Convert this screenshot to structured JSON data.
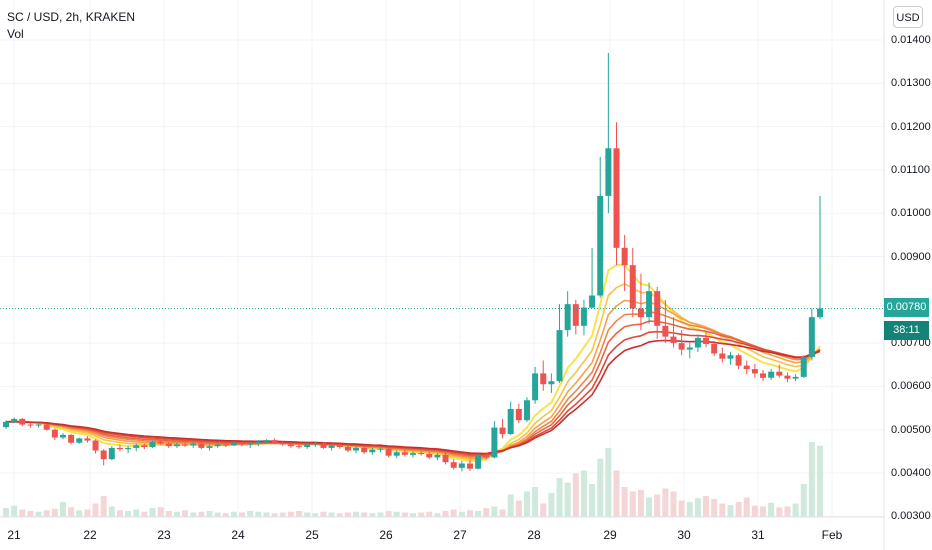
{
  "header": {
    "symbol_title": "SC / USD, 2h, KRAKEN",
    "volume_label": "Vol"
  },
  "currency_button": "USD",
  "last_price": {
    "label": "0.00780",
    "countdown": "38:11",
    "value": 0.0078
  },
  "colors": {
    "up": "#26a69a",
    "down": "#ef5350",
    "vol_up": "#cfe9dc",
    "vol_down": "#f4d6d6",
    "ema_ribbon": [
      "#f9e24a",
      "#f7c24a",
      "#f3a24a",
      "#ef8548",
      "#e86644",
      "#dd4a3d",
      "#c8302e"
    ]
  },
  "chart_data": {
    "type": "candlestick",
    "title": "SC / USD, 2h, KRAKEN",
    "ylim": [
      0.0031,
      0.0142
    ],
    "y_ticks": [
      "0.01400",
      "0.01300",
      "0.01200",
      "0.01100",
      "0.01000",
      "0.00900",
      "0.00700",
      "0.00600",
      "0.00500",
      "0.00400",
      "0.00300"
    ],
    "x_ticks": [
      "21",
      "22",
      "23",
      "24",
      "25",
      "26",
      "27",
      "28",
      "29",
      "30",
      "31",
      "Feb"
    ],
    "last_price": 0.0078,
    "grid": true,
    "candles": [
      [
        0.00506,
        0.00522,
        0.00502,
        0.00518
      ],
      [
        0.00518,
        0.00528,
        0.00515,
        0.00525
      ],
      [
        0.00525,
        0.00527,
        0.00508,
        0.00512
      ],
      [
        0.00512,
        0.00516,
        0.00505,
        0.0051
      ],
      [
        0.0051,
        0.00515,
        0.00505,
        0.00512
      ],
      [
        0.00512,
        0.00514,
        0.00498,
        0.005
      ],
      [
        0.005,
        0.00503,
        0.00476,
        0.00482
      ],
      [
        0.00482,
        0.00492,
        0.00478,
        0.00488
      ],
      [
        0.00488,
        0.0049,
        0.00466,
        0.0047
      ],
      [
        0.0047,
        0.00482,
        0.00468,
        0.0048
      ],
      [
        0.0048,
        0.00485,
        0.0047,
        0.00475
      ],
      [
        0.00475,
        0.00478,
        0.00445,
        0.00452
      ],
      [
        0.00452,
        0.00455,
        0.00418,
        0.00432
      ],
      [
        0.00432,
        0.00462,
        0.0043,
        0.00458
      ],
      [
        0.00458,
        0.00466,
        0.0045,
        0.00455
      ],
      [
        0.00455,
        0.00462,
        0.00446,
        0.00458
      ],
      [
        0.00458,
        0.00468,
        0.0045,
        0.00464
      ],
      [
        0.00464,
        0.00468,
        0.00455,
        0.0046
      ],
      [
        0.0046,
        0.00475,
        0.00458,
        0.00472
      ],
      [
        0.00472,
        0.00476,
        0.00465,
        0.00468
      ],
      [
        0.00468,
        0.00472,
        0.00458,
        0.00462
      ],
      [
        0.00462,
        0.0047,
        0.00458,
        0.00466
      ],
      [
        0.00466,
        0.0047,
        0.0046,
        0.00464
      ],
      [
        0.00464,
        0.00472,
        0.00458,
        0.00468
      ],
      [
        0.00468,
        0.0047,
        0.00455,
        0.00458
      ],
      [
        0.00458,
        0.00466,
        0.00452,
        0.00462
      ],
      [
        0.00462,
        0.0047,
        0.00458,
        0.00466
      ],
      [
        0.00466,
        0.0047,
        0.0046,
        0.00464
      ],
      [
        0.00464,
        0.00475,
        0.00462,
        0.0047
      ],
      [
        0.0047,
        0.00472,
        0.00462,
        0.00466
      ],
      [
        0.00466,
        0.00472,
        0.00458,
        0.00468
      ],
      [
        0.00468,
        0.00476,
        0.00462,
        0.00472
      ],
      [
        0.00472,
        0.00478,
        0.00468,
        0.00476
      ],
      [
        0.00476,
        0.0048,
        0.00466,
        0.0047
      ],
      [
        0.0047,
        0.00474,
        0.00462,
        0.00466
      ],
      [
        0.00466,
        0.0047,
        0.00458,
        0.00462
      ],
      [
        0.00462,
        0.00468,
        0.00456,
        0.0046
      ],
      [
        0.0046,
        0.0047,
        0.00456,
        0.00466
      ],
      [
        0.00466,
        0.00472,
        0.0046,
        0.00468
      ],
      [
        0.00468,
        0.00472,
        0.00456,
        0.00458
      ],
      [
        0.00458,
        0.00466,
        0.00452,
        0.00464
      ],
      [
        0.00464,
        0.00468,
        0.00456,
        0.0046
      ],
      [
        0.0046,
        0.00466,
        0.00448,
        0.00452
      ],
      [
        0.00452,
        0.00462,
        0.00446,
        0.00458
      ],
      [
        0.00458,
        0.00462,
        0.00444,
        0.00448
      ],
      [
        0.00448,
        0.00458,
        0.00442,
        0.00454
      ],
      [
        0.00454,
        0.0046,
        0.00448,
        0.00456
      ],
      [
        0.00456,
        0.00458,
        0.00436,
        0.0044
      ],
      [
        0.0044,
        0.00452,
        0.00434,
        0.00448
      ],
      [
        0.00448,
        0.00454,
        0.00438,
        0.00442
      ],
      [
        0.00442,
        0.0045,
        0.00436,
        0.00446
      ],
      [
        0.00446,
        0.00452,
        0.0044,
        0.00444
      ],
      [
        0.00444,
        0.00448,
        0.00432,
        0.00436
      ],
      [
        0.00436,
        0.00446,
        0.0043,
        0.00442
      ],
      [
        0.00442,
        0.00448,
        0.0042,
        0.00425
      ],
      [
        0.00425,
        0.00432,
        0.00408,
        0.00412
      ],
      [
        0.00412,
        0.00428,
        0.00404,
        0.00422
      ],
      [
        0.00422,
        0.0043,
        0.00405,
        0.0041
      ],
      [
        0.0041,
        0.00445,
        0.00408,
        0.0044
      ],
      [
        0.0044,
        0.00448,
        0.00432,
        0.00436
      ],
      [
        0.00436,
        0.0052,
        0.00434,
        0.00505
      ],
      [
        0.00505,
        0.00525,
        0.0048,
        0.0049
      ],
      [
        0.0049,
        0.00565,
        0.00488,
        0.00548
      ],
      [
        0.00548,
        0.0056,
        0.00515,
        0.00522
      ],
      [
        0.00522,
        0.00575,
        0.00518,
        0.00568
      ],
      [
        0.00568,
        0.00645,
        0.0056,
        0.0063
      ],
      [
        0.0063,
        0.0066,
        0.0059,
        0.00605
      ],
      [
        0.00605,
        0.0063,
        0.00585,
        0.00612
      ],
      [
        0.00612,
        0.0079,
        0.00608,
        0.0073
      ],
      [
        0.0073,
        0.0082,
        0.00715,
        0.0079
      ],
      [
        0.0079,
        0.008,
        0.0072,
        0.0074
      ],
      [
        0.0074,
        0.008,
        0.00718,
        0.00782
      ],
      [
        0.00782,
        0.0092,
        0.0078,
        0.0081
      ],
      [
        0.0081,
        0.0113,
        0.00805,
        0.0104
      ],
      [
        0.0104,
        0.0137,
        0.01,
        0.0115
      ],
      [
        0.0115,
        0.0121,
        0.0088,
        0.0092
      ],
      [
        0.0092,
        0.0095,
        0.0082,
        0.0088
      ],
      [
        0.0088,
        0.0092,
        0.0076,
        0.0078
      ],
      [
        0.0078,
        0.0086,
        0.0073,
        0.0076
      ],
      [
        0.0076,
        0.0084,
        0.00745,
        0.0082
      ],
      [
        0.0082,
        0.0083,
        0.0071,
        0.0074
      ],
      [
        0.0074,
        0.008,
        0.007,
        0.00715
      ],
      [
        0.00715,
        0.0076,
        0.0069,
        0.007
      ],
      [
        0.007,
        0.0073,
        0.00672,
        0.00685
      ],
      [
        0.00685,
        0.007,
        0.00665,
        0.0069
      ],
      [
        0.0069,
        0.0072,
        0.0068,
        0.00712
      ],
      [
        0.00712,
        0.00725,
        0.0069,
        0.00698
      ],
      [
        0.00698,
        0.00705,
        0.0067,
        0.00676
      ],
      [
        0.00676,
        0.0069,
        0.00655,
        0.00664
      ],
      [
        0.00664,
        0.0068,
        0.0065,
        0.00672
      ],
      [
        0.00672,
        0.00676,
        0.0064,
        0.00648
      ],
      [
        0.00648,
        0.0066,
        0.00628,
        0.0064
      ],
      [
        0.0064,
        0.00652,
        0.0062,
        0.0063
      ],
      [
        0.0063,
        0.00638,
        0.00612,
        0.0062
      ],
      [
        0.0062,
        0.0064,
        0.00615,
        0.00634
      ],
      [
        0.00634,
        0.0065,
        0.0062,
        0.00625
      ],
      [
        0.00625,
        0.00632,
        0.0061,
        0.00618
      ],
      [
        0.00618,
        0.00628,
        0.00612,
        0.00622
      ],
      [
        0.00622,
        0.00672,
        0.0062,
        0.00668
      ],
      [
        0.00668,
        0.0078,
        0.0066,
        0.0076
      ],
      [
        0.0076,
        0.0104,
        0.00755,
        0.0078
      ]
    ],
    "volumes": [
      0.12,
      0.15,
      0.1,
      0.08,
      0.07,
      0.09,
      0.11,
      0.2,
      0.13,
      0.09,
      0.1,
      0.18,
      0.28,
      0.14,
      0.09,
      0.08,
      0.1,
      0.07,
      0.12,
      0.13,
      0.08,
      0.07,
      0.09,
      0.06,
      0.07,
      0.08,
      0.06,
      0.05,
      0.07,
      0.06,
      0.08,
      0.07,
      0.06,
      0.05,
      0.06,
      0.07,
      0.08,
      0.06,
      0.05,
      0.07,
      0.06,
      0.05,
      0.06,
      0.07,
      0.06,
      0.05,
      0.06,
      0.08,
      0.07,
      0.06,
      0.05,
      0.06,
      0.07,
      0.05,
      0.08,
      0.1,
      0.07,
      0.09,
      0.08,
      0.12,
      0.14,
      0.1,
      0.3,
      0.22,
      0.34,
      0.4,
      0.18,
      0.32,
      0.52,
      0.46,
      0.58,
      0.62,
      0.44,
      0.78,
      0.92,
      0.62,
      0.4,
      0.34,
      0.36,
      0.26,
      0.3,
      0.38,
      0.34,
      0.22,
      0.2,
      0.25,
      0.28,
      0.24,
      0.18,
      0.16,
      0.2,
      0.26,
      0.15,
      0.14,
      0.19,
      0.13,
      0.14,
      0.18,
      0.44,
      1.0,
      0.95
    ]
  }
}
